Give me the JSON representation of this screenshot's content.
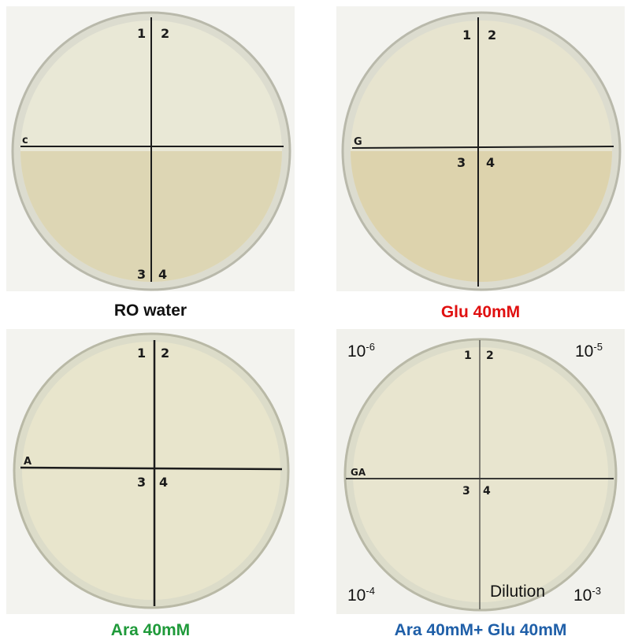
{
  "panels": [
    {
      "caption": "RO water",
      "caption_color": "#111111",
      "plate_label": "c",
      "quadrants": [
        "1",
        "2",
        "3",
        "4"
      ]
    },
    {
      "caption": "Glu 40mM",
      "caption_color": "#e01010",
      "plate_label": "G",
      "quadrants": [
        "1",
        "2",
        "3",
        "4"
      ]
    },
    {
      "caption": "Ara 40mM",
      "caption_color": "#1f9a3a",
      "plate_label": "A",
      "quadrants": [
        "1",
        "2",
        "3",
        "4"
      ]
    },
    {
      "caption": "Ara 40mM+ Glu 40mM",
      "caption_color": "#1f5fa8",
      "plate_label": "GA",
      "quadrants": [
        "1",
        "2",
        "3",
        "4"
      ],
      "dilution_labels": {
        "top_left": {
          "base": "10",
          "exp": "-6"
        },
        "top_right": {
          "base": "10",
          "exp": "-5"
        },
        "bottom_left": {
          "base": "10",
          "exp": "-4"
        },
        "bottom_right": {
          "base": "10",
          "exp": "-3"
        }
      },
      "dilution_title": "Dilution"
    }
  ]
}
